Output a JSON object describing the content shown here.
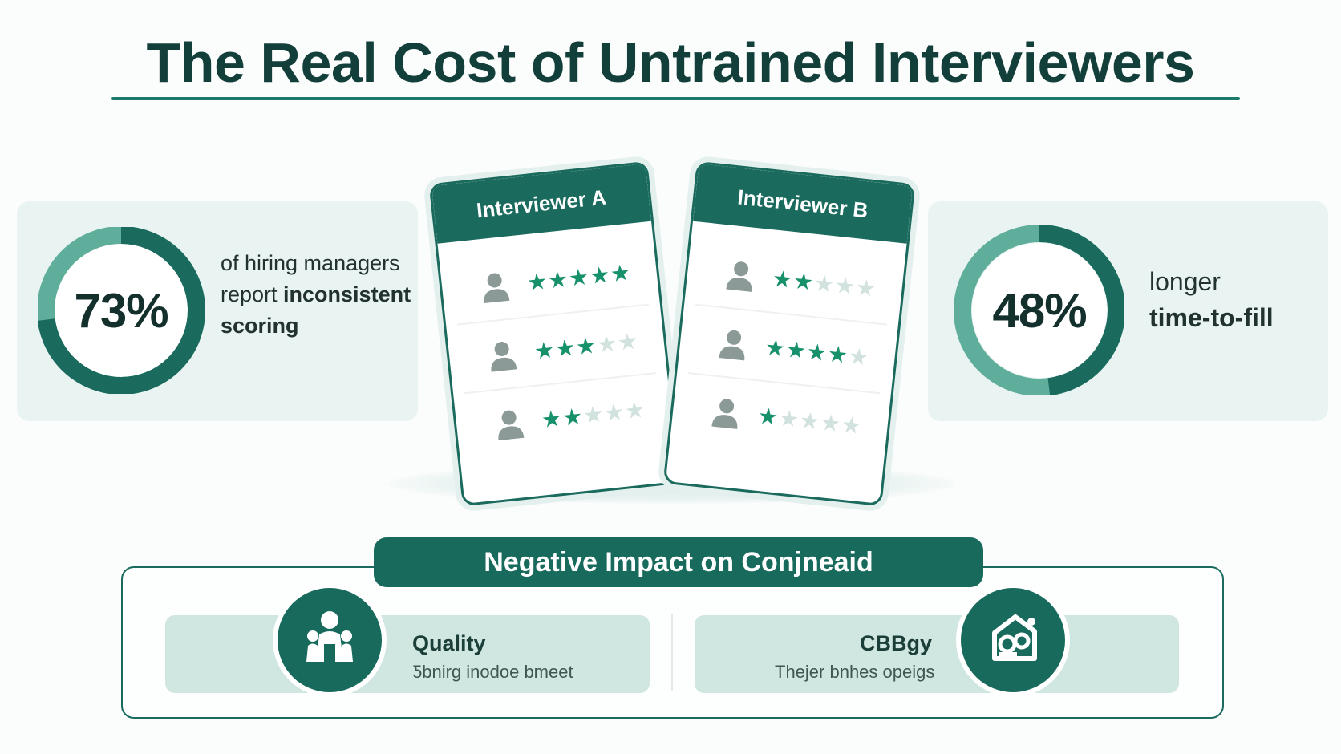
{
  "title": "The Real Cost of Untrained Interviewers",
  "colors": {
    "primary": "#1a6b5d",
    "accent_light": "#5fae9c",
    "panel": "#e9f3f1",
    "star_on": "#17906c",
    "star_off": "#d2e2de"
  },
  "stats": [
    {
      "value": "73%",
      "fraction": 0.73,
      "line1": "of hiring managers",
      "line2_plain": "report ",
      "line2_bold": "inconsistent",
      "line3_bold": "scoring"
    },
    {
      "value": "48%",
      "fraction": 0.48,
      "line1": "longer",
      "line2_bold": "time-to-fill"
    }
  ],
  "cards": [
    {
      "title": "Interviewer A",
      "ratings": [
        5,
        3,
        2
      ],
      "avatar_icon": "person-icon"
    },
    {
      "title": "Interviewer B",
      "ratings": [
        2,
        3.5,
        1
      ],
      "avatar_icon": "person-icon"
    }
  ],
  "impact": {
    "banner": "Negative Impact on Conjneaid",
    "items": [
      {
        "title": "Quality",
        "subtitle": "Ƽbnirg inodoe bmeet",
        "icon": "people-icon"
      },
      {
        "title": "CBBgy",
        "subtitle": "Thejer bnhes opeigs",
        "icon": "house-icon"
      }
    ]
  }
}
